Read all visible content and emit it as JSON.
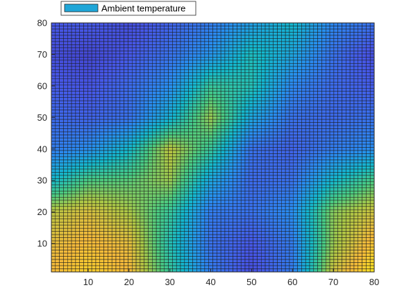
{
  "chart_data": {
    "type": "heatmap",
    "title": "",
    "xlabel": "",
    "ylabel": "",
    "xlim": [
      1,
      80
    ],
    "ylim": [
      1,
      80
    ],
    "x_ticks": [
      10,
      20,
      30,
      40,
      50,
      60,
      70,
      80
    ],
    "y_ticks": [
      10,
      20,
      30,
      40,
      50,
      60,
      70,
      80
    ],
    "grid_resolution": [
      80,
      80
    ],
    "colormap": "parula",
    "legend": {
      "label": "Ambient temperature",
      "placement": "top-left",
      "swatch_color": "#1fa6d8"
    },
    "value_range": [
      0,
      1
    ],
    "control_grid": {
      "x": [
        1,
        10,
        20,
        30,
        40,
        50,
        60,
        70,
        80
      ],
      "y": [
        80,
        70,
        60,
        50,
        40,
        30,
        20,
        10,
        1
      ],
      "values": [
        [
          0.15,
          0.16,
          0.12,
          0.18,
          0.25,
          0.35,
          0.45,
          0.28,
          0.22
        ],
        [
          0.12,
          0.1,
          0.15,
          0.22,
          0.32,
          0.48,
          0.38,
          0.22,
          0.12
        ],
        [
          0.16,
          0.14,
          0.2,
          0.3,
          0.55,
          0.5,
          0.28,
          0.2,
          0.16
        ],
        [
          0.2,
          0.18,
          0.22,
          0.42,
          0.7,
          0.38,
          0.22,
          0.2,
          0.22
        ],
        [
          0.25,
          0.3,
          0.45,
          0.75,
          0.55,
          0.22,
          0.18,
          0.25,
          0.3
        ],
        [
          0.45,
          0.6,
          0.62,
          0.7,
          0.38,
          0.2,
          0.22,
          0.45,
          0.6
        ],
        [
          0.75,
          0.8,
          0.72,
          0.55,
          0.25,
          0.22,
          0.3,
          0.68,
          0.78
        ],
        [
          0.82,
          0.86,
          0.82,
          0.5,
          0.22,
          0.15,
          0.25,
          0.7,
          0.88
        ],
        [
          0.85,
          0.9,
          0.85,
          0.55,
          0.25,
          0.12,
          0.25,
          0.78,
          0.95
        ]
      ]
    }
  }
}
